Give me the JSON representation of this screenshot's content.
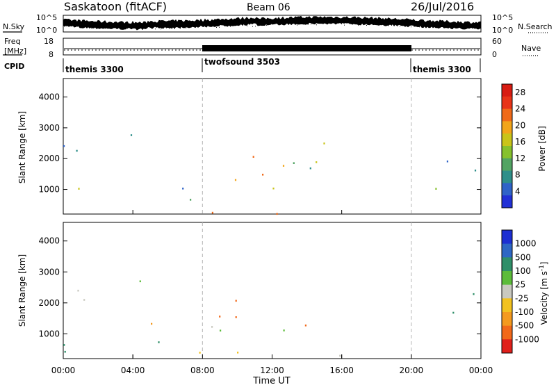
{
  "header": {
    "site": "Saskatoon (fitACF)",
    "beam": "Beam 06",
    "date": "26/Jul/2016"
  },
  "noise_panel": {
    "left_label": "N.Sky",
    "right_label": "N.Search",
    "left_top_tick": "10^5",
    "left_bottom_tick": "10^0",
    "right_top_tick": "10^5",
    "right_bottom_tick": "10^0"
  },
  "freq_panel": {
    "left_label_1": "Freq",
    "left_label_2": "[MHz]",
    "left_top_tick": "18",
    "left_bottom_tick": "8",
    "right_label": "Nave",
    "right_top_tick": "60",
    "right_bottom_tick": "0"
  },
  "cpid_panel": {
    "label": "CPID",
    "segments": [
      {
        "name": "themis 3300",
        "start_hour": 0,
        "end_hour": 8
      },
      {
        "name": "twofsound 3503",
        "start_hour": 8,
        "end_hour": 20
      },
      {
        "name": "themis 3300",
        "start_hour": 20,
        "end_hour": 24
      }
    ]
  },
  "colors": {
    "power_scale": [
      "#2130d6",
      "#2f63c8",
      "#2e8f8a",
      "#52a463",
      "#86c12d",
      "#c9c41a",
      "#f2a51a",
      "#f06a19",
      "#e83418",
      "#d81c12"
    ],
    "velocity_scale": [
      "#1d2fd2",
      "#2e67c4",
      "#2f8f69",
      "#5cbc3a",
      "#c9c9c0",
      "#f2c21f",
      "#f49a1f",
      "#f2691a",
      "#e0201b"
    ]
  },
  "chart_data": [
    {
      "type": "heatmap",
      "panel": "power",
      "ylabel": "Slant Range [km]",
      "xlabel": "Time UT",
      "xlim": [
        0,
        24
      ],
      "ylim": [
        200,
        4600
      ],
      "y_ticks": [
        "1000",
        "2000",
        "3000",
        "4000"
      ],
      "x_ticks": [
        "00:00",
        "04:00",
        "08:00",
        "12:00",
        "16:00",
        "20:00",
        "00:00"
      ],
      "colorbar": {
        "label": "Power [dB]",
        "range": [
          0,
          30
        ],
        "ticks": [
          "4",
          "8",
          "12",
          "16",
          "20",
          "24",
          "28"
        ]
      },
      "echo_regions": [
        {
          "t0": 0.0,
          "t1": 3.5,
          "r0": 1700,
          "r1": 2500,
          "level": 8
        },
        {
          "t0": 0.0,
          "t1": 2.6,
          "r0": 600,
          "r1": 1200,
          "level": 14
        },
        {
          "t0": 3.0,
          "t1": 4.6,
          "r0": 1900,
          "r1": 3200,
          "level": 6
        },
        {
          "t0": 4.0,
          "t1": 8.0,
          "r0": 500,
          "r1": 1300,
          "level": 12
        },
        {
          "t0": 8.0,
          "t1": 13.0,
          "r0": 900,
          "r1": 2200,
          "level": 16
        },
        {
          "t0": 13.0,
          "t1": 16.5,
          "r0": 1500,
          "r1": 2900,
          "level": 10
        },
        {
          "t0": 20.0,
          "t1": 24.0,
          "r0": 1600,
          "r1": 2400,
          "level": 8
        },
        {
          "t0": 20.0,
          "t1": 24.0,
          "r0": 850,
          "r1": 1150,
          "level": 7
        },
        {
          "t0": 4.0,
          "t1": 20.0,
          "r0": 200,
          "r1": 400,
          "level": 24
        }
      ]
    },
    {
      "type": "heatmap",
      "panel": "velocity",
      "ylabel": "Slant Range [km]",
      "xlabel": "Time UT",
      "xlim": [
        0,
        24
      ],
      "ylim": [
        200,
        4600
      ],
      "y_ticks": [
        "1000",
        "2000",
        "3000",
        "4000"
      ],
      "x_ticks": [
        "00:00",
        "04:00",
        "08:00",
        "12:00",
        "16:00",
        "20:00",
        "00:00"
      ],
      "colorbar": {
        "label": "Velocity [m s^-1]",
        "ticks": [
          "1000",
          "500",
          "100",
          "25",
          "-25",
          "-100",
          "-500",
          "-1000"
        ]
      },
      "echo_regions": [
        {
          "t0": 0.0,
          "t1": 3.5,
          "r0": 1700,
          "r1": 2500,
          "velocity": 0
        },
        {
          "t0": 3.0,
          "t1": 4.6,
          "r0": 1900,
          "r1": 3200,
          "velocity": 0
        },
        {
          "t0": 4.0,
          "t1": 6.0,
          "r0": 1100,
          "r1": 1600,
          "velocity": -300
        },
        {
          "t0": 7.0,
          "t1": 13.0,
          "r0": 900,
          "r1": 1500,
          "velocity": 0
        },
        {
          "t0": 9.5,
          "t1": 14.5,
          "r0": 1200,
          "r1": 2100,
          "velocity": -400
        },
        {
          "t0": 8.0,
          "t1": 9.5,
          "r0": 1500,
          "r1": 2100,
          "velocity": -300
        },
        {
          "t0": 20.0,
          "t1": 24.0,
          "r0": 1600,
          "r1": 2400,
          "velocity": 0
        },
        {
          "t0": 0.0,
          "t1": 6.0,
          "r0": 300,
          "r1": 900,
          "velocity": 80
        },
        {
          "t0": 4.0,
          "t1": 20.0,
          "r0": 200,
          "r1": 450,
          "velocity": -40
        }
      ]
    }
  ]
}
